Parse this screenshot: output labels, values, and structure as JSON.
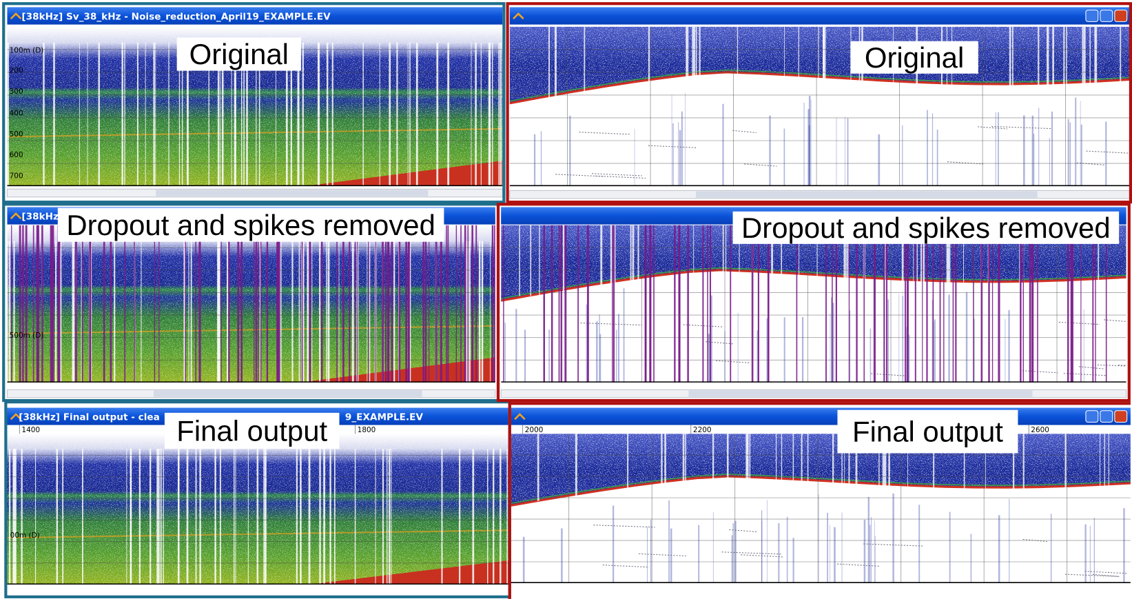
{
  "left_panels": [
    {
      "title": "[38kHz] Sv_38_kHz - Noise_reduction_April19_EXAMPLE.EV",
      "label": "Original",
      "depth_labels": [
        "100m (D)",
        "200",
        "300",
        "400",
        "500",
        "600",
        "700"
      ]
    },
    {
      "title": "[38kHz",
      "label": "Dropout and spikes removed",
      "depth_labels": [
        "500m (D)"
      ]
    },
    {
      "title": "[38kHz] Final output - clea",
      "title_end": "9_EXAMPLE.EV",
      "label": "Final output",
      "depth_labels": [
        "00m (D)"
      ],
      "distance_labels": [
        "1400",
        "1800"
      ]
    }
  ],
  "right_panels": [
    {
      "label": "Original"
    },
    {
      "label": "Dropout and spikes removed"
    },
    {
      "label": "Final output",
      "distance_labels": [
        "2000",
        "2200",
        "2600"
      ]
    }
  ]
}
